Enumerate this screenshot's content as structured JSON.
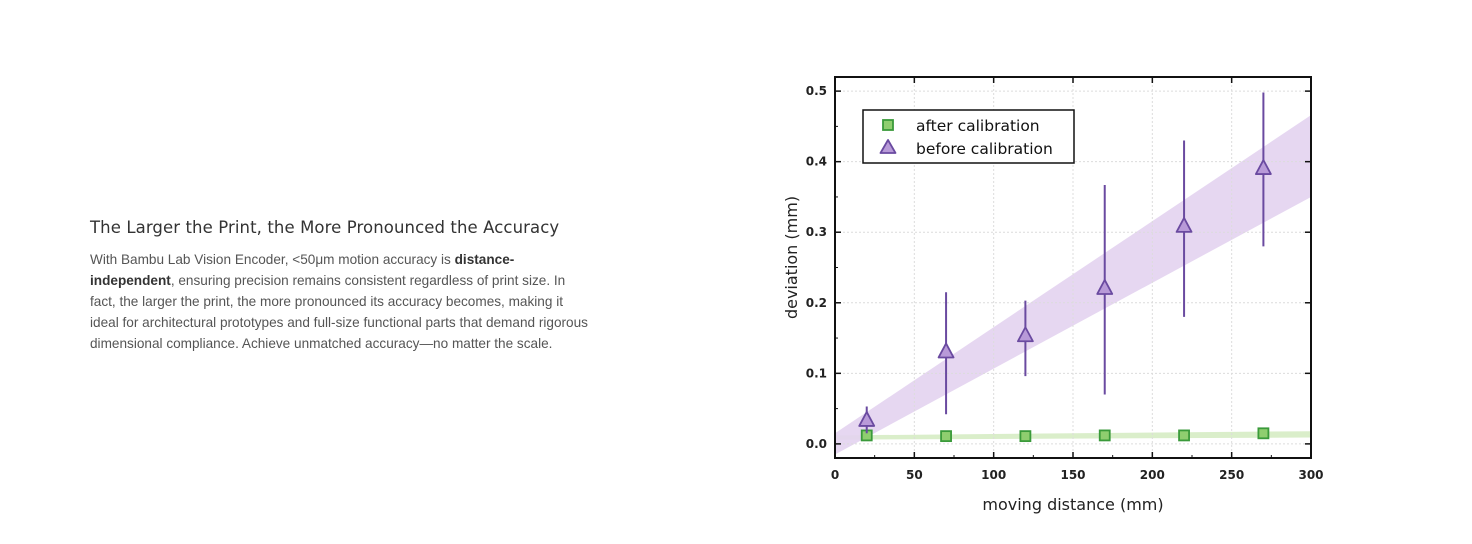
{
  "text": {
    "heading": "The Larger the Print, the More Pronounced the Accuracy",
    "body_prefix": "With Bambu Lab Vision Encoder, <50μm motion accuracy is ",
    "body_bold": "distance-independent",
    "body_suffix": ", ensuring precision remains consistent regardless of print size. In fact, the larger the print, the more pronounced its accuracy becomes, making it ideal for architectural prototypes and full-size functional parts that demand rigorous dimensional compliance. Achieve unmatched accuracy—no matter the scale."
  },
  "chart_data": {
    "type": "scatter",
    "xlabel": "moving distance (mm)",
    "ylabel": "deviation (mm)",
    "xlim": [
      0,
      300
    ],
    "ylim": [
      -0.02,
      0.52
    ],
    "xticks": [
      "0",
      "50",
      "100",
      "150",
      "200",
      "250",
      "300"
    ],
    "yticks": [
      "0.0",
      "0.1",
      "0.2",
      "0.3",
      "0.4",
      "0.5"
    ],
    "grid": true,
    "legend_position": "top-left",
    "series": [
      {
        "name": "after calibration",
        "marker": "square",
        "color": "#3a9a3a",
        "fill": "#8fce6f",
        "x": [
          20,
          70,
          120,
          170,
          220,
          270
        ],
        "y": [
          0.012,
          0.011,
          0.011,
          0.012,
          0.012,
          0.015
        ],
        "err_low": [
          0.005,
          0.005,
          0.004,
          0.005,
          0.004,
          0.005
        ],
        "err_high": [
          0.005,
          0.005,
          0.004,
          0.005,
          0.004,
          0.007
        ],
        "band": {
          "x": [
            0,
            300
          ],
          "y_low": [
            0.006,
            0.009
          ],
          "y_high": [
            0.012,
            0.018
          ],
          "color": "#d6ecc4"
        }
      },
      {
        "name": "before calibration",
        "marker": "triangle",
        "color": "#6a4aa0",
        "fill": "#b89ad8",
        "x": [
          20,
          70,
          120,
          170,
          220,
          270
        ],
        "y": [
          0.033,
          0.13,
          0.153,
          0.22,
          0.308,
          0.39
        ],
        "err_low": [
          0.018,
          0.088,
          0.057,
          0.15,
          0.128,
          0.11
        ],
        "err_high": [
          0.02,
          0.085,
          0.05,
          0.147,
          0.122,
          0.108
        ],
        "band": {
          "x": [
            0,
            300
          ],
          "y_low": [
            -0.015,
            0.35
          ],
          "y_high": [
            0.015,
            0.466
          ],
          "color": "#e3d3ef"
        }
      }
    ]
  }
}
